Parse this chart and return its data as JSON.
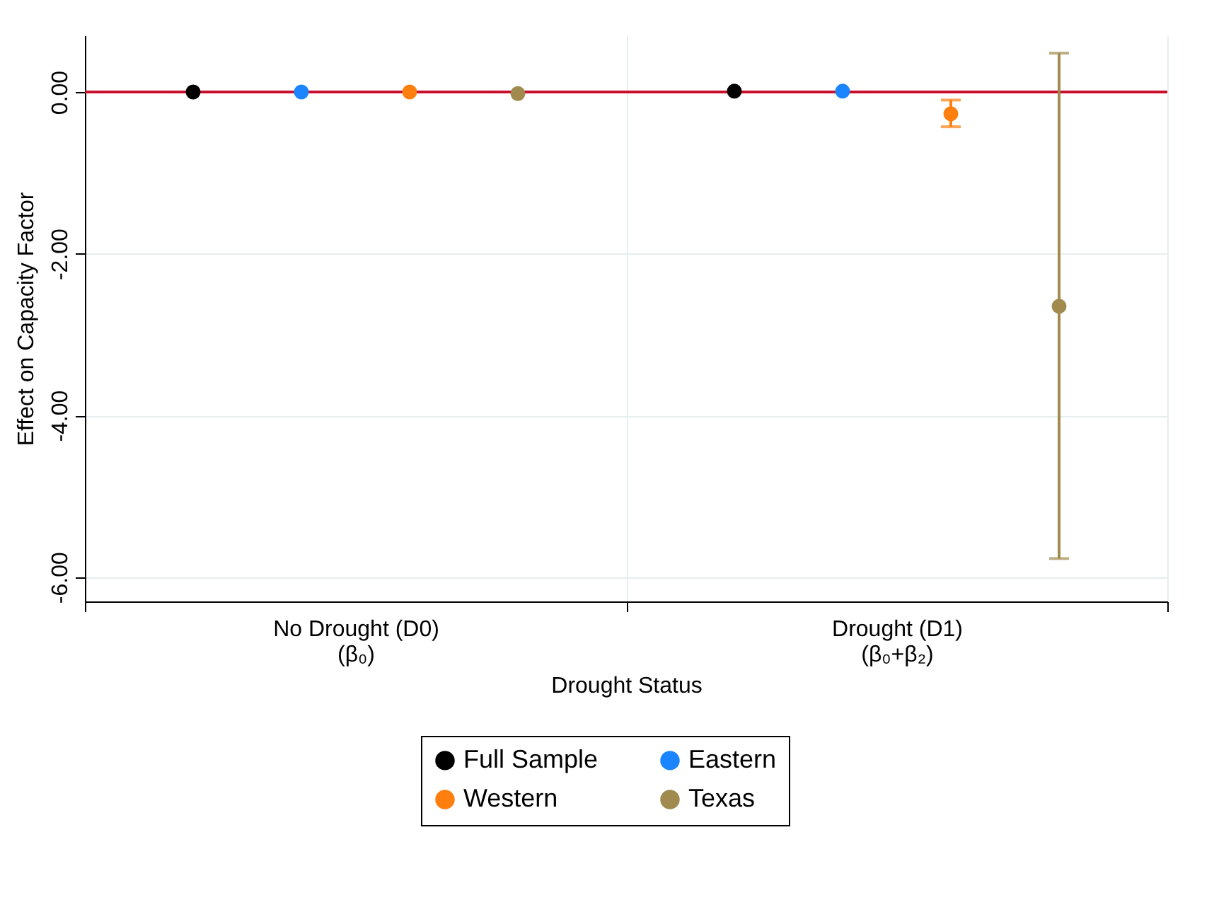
{
  "chart_data": {
    "type": "scatter",
    "xlabel": "Drought Status",
    "ylabel": "Effect on Capacity Factor",
    "categories": [
      "No Drought (D0)\n(β₀)",
      "Drought (D1)\n(β₀+β₂)"
    ],
    "ylim": [
      -6.3,
      0.7
    ],
    "yticks": [
      {
        "value": 0,
        "label": "0.00"
      },
      {
        "value": -2,
        "label": "-2.00"
      },
      {
        "value": -4,
        "label": "-4.00"
      },
      {
        "value": -6,
        "label": "-6.00"
      }
    ],
    "grid": true,
    "legend": "bottom",
    "marker": "circle",
    "ref_lines": [
      {
        "axis": "y",
        "value": 0,
        "color": "#c8102e"
      }
    ],
    "series": [
      {
        "name": "Full Sample",
        "color": "#000000",
        "values": [
          0,
          0.01
        ]
      },
      {
        "name": "Eastern",
        "color": "#1a85ff",
        "values": [
          0,
          0.01
        ]
      },
      {
        "name": "Western",
        "color": "#ff7f0e",
        "values": [
          0,
          -0.27
        ],
        "errors": [
          null,
          [
            -0.43,
            -0.1
          ]
        ]
      },
      {
        "name": "Texas",
        "color": "#a08a4e",
        "values": [
          -0.02,
          -2.65
        ],
        "errors": [
          null,
          [
            -5.77,
            0.48
          ]
        ]
      }
    ]
  }
}
